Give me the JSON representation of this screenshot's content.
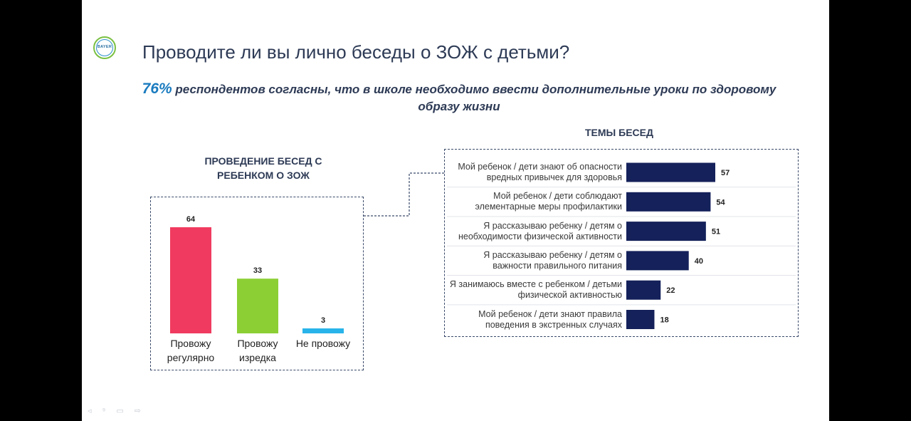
{
  "title": "Проводите ли вы лично беседы о ЗОЖ с детьми?",
  "highlight": {
    "value": "76%",
    "text": " респондентов согласны, что в школе необходимо ввести дополнительные уроки по здоровому образу жизни"
  },
  "logo": {
    "text": "BAYER"
  },
  "nav_icons": "◃ ⁹ ▭ ⇨",
  "colors": {
    "bar_dark_navy": "#14215a",
    "regular": "#f03a5f",
    "sometimes": "#8ccf35",
    "never": "#28b4ea"
  },
  "chart_data": [
    {
      "type": "bar",
      "title": "ПРОВЕДЕНИЕ БЕСЕД С РЕБЕНКОМ О ЗОЖ",
      "categories": [
        "Провожу регулярно",
        "Провожу изредка",
        "Не провожу"
      ],
      "values": [
        64,
        33,
        3
      ],
      "colors": [
        "#f03a5f",
        "#8ccf35",
        "#28b4ea"
      ],
      "ylim": [
        0,
        64
      ],
      "grid": false
    },
    {
      "type": "bar",
      "orientation": "horizontal",
      "title": "ТЕМЫ БЕСЕД",
      "categories": [
        "Мой ребенок / дети знают об опасности вредных привычек для здоровья",
        "Мой ребенок / дети соблюдают элементарные меры профилактики",
        "Я рассказываю ребенку / детям о необходимости физической активности",
        "Я рассказываю ребенку / детям о важности правильного питания",
        "Я занимаюсь вместе с ребенком / детьми физической активностью",
        "Мой ребенок / дети знают правила поведения в экстренных случаях"
      ],
      "values": [
        57,
        54,
        51,
        40,
        22,
        18
      ],
      "color": "#14215a",
      "xlim": [
        0,
        57
      ],
      "grid": false
    }
  ]
}
